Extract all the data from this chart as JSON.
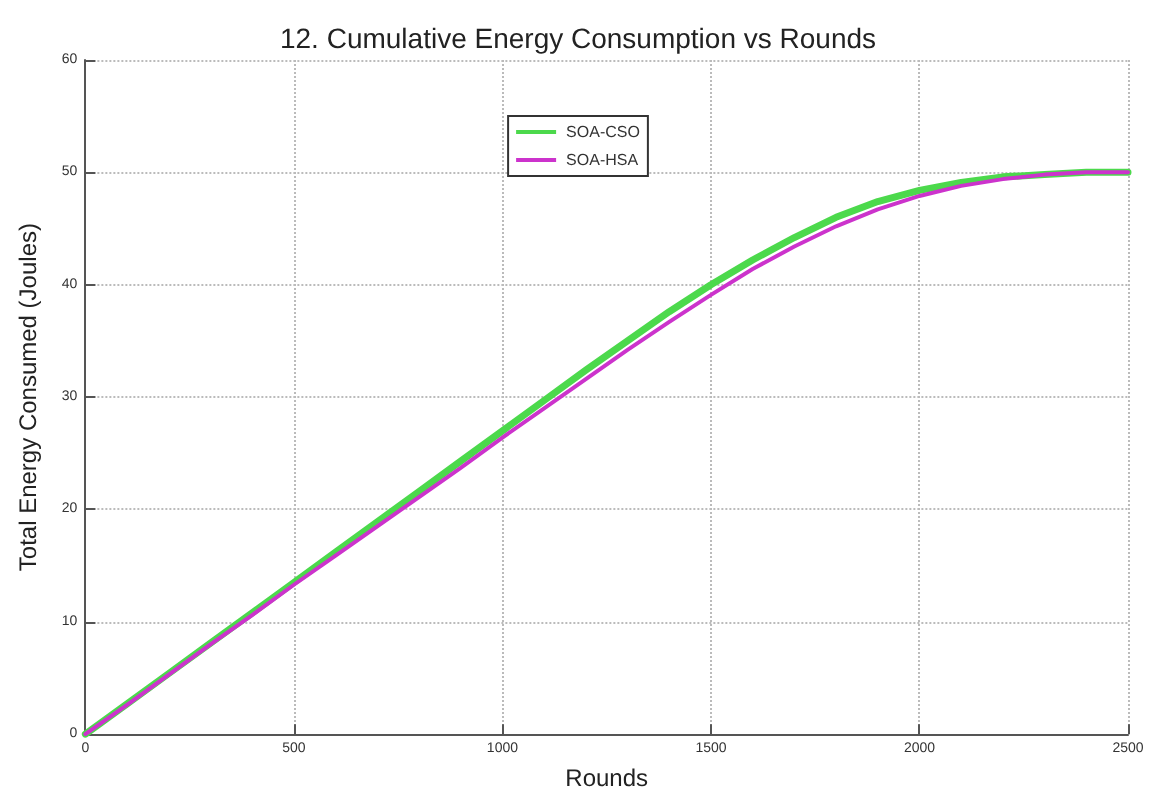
{
  "chart_data": {
    "type": "line",
    "title": "12. Cumulative Energy Consumption vs Rounds",
    "xlabel": "Rounds",
    "ylabel": "Total Energy Consumed (Joules)",
    "x": [
      0,
      100,
      200,
      300,
      400,
      500,
      600,
      700,
      800,
      900,
      1000,
      1100,
      1200,
      1300,
      1400,
      1500,
      1600,
      1700,
      1800,
      1900,
      2000,
      2100,
      2200,
      2300,
      2400,
      2500
    ],
    "series": [
      {
        "name": "SOA-CSO",
        "color": "#4cd94c",
        "values": [
          0,
          2.7,
          5.4,
          8.1,
          10.8,
          13.5,
          16.2,
          18.9,
          21.6,
          24.3,
          27.0,
          29.7,
          32.4,
          35.0,
          37.6,
          40.0,
          42.2,
          44.2,
          46.0,
          47.4,
          48.4,
          49.1,
          49.6,
          49.8,
          50,
          50
        ]
      },
      {
        "name": "SOA-HSA",
        "color": "#cc33cc",
        "values": [
          0,
          2.6,
          5.3,
          8.0,
          10.6,
          13.3,
          15.9,
          18.5,
          21.1,
          23.7,
          26.4,
          29.0,
          31.6,
          34.2,
          36.7,
          39.1,
          41.4,
          43.4,
          45.2,
          46.7,
          47.9,
          48.8,
          49.4,
          49.8,
          50,
          50
        ]
      }
    ],
    "xlim": [
      0,
      2500
    ],
    "xticks": [
      0,
      500,
      1000,
      1500,
      2000,
      2500
    ],
    "ylim": [
      0,
      60
    ],
    "yticks": [
      0,
      10,
      20,
      30,
      40,
      50,
      60
    ],
    "grid": true,
    "legend": "top",
    "marker": "none",
    "line_style": "solid"
  }
}
